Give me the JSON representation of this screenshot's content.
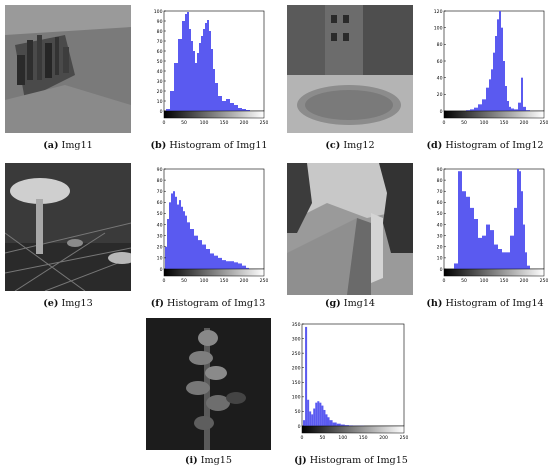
{
  "captions": [
    {
      "letter": "(a)",
      "text": "Img11"
    },
    {
      "letter": "(b)",
      "text": "Histogram of Img11"
    },
    {
      "letter": "(c)",
      "text": "Img12"
    },
    {
      "letter": "(d)",
      "text": "Histogram of Img12"
    },
    {
      "letter": "(e)",
      "text": "Img13"
    },
    {
      "letter": "(f)",
      "text": "Histogram of Img13"
    },
    {
      "letter": "(g)",
      "text": "Img14"
    },
    {
      "letter": "(h)",
      "text": "Histogram of Img14"
    },
    {
      "letter": "(i)",
      "text": "Img15"
    },
    {
      "letter": "(j)",
      "text": "Histogram of Img15"
    }
  ],
  "chart_data": [
    {
      "type": "bar",
      "title": "",
      "xlabel": "",
      "ylabel": "",
      "xlim": [
        0,
        250
      ],
      "ylim": [
        0,
        100
      ],
      "xticks": [
        "0",
        "50",
        "100",
        "150",
        "200",
        "250"
      ],
      "yticks": [
        "0",
        "10",
        "20",
        "30",
        "40",
        "50",
        "60",
        "70",
        "80",
        "90",
        "100"
      ],
      "x": [
        10,
        20,
        30,
        40,
        50,
        55,
        60,
        65,
        70,
        75,
        80,
        85,
        90,
        95,
        100,
        105,
        110,
        115,
        120,
        125,
        130,
        140,
        150,
        160,
        170,
        180,
        190,
        200,
        210
      ],
      "values": [
        2,
        20,
        48,
        72,
        90,
        97,
        99,
        82,
        70,
        60,
        48,
        58,
        68,
        75,
        82,
        88,
        91,
        80,
        62,
        42,
        28,
        15,
        10,
        12,
        8,
        6,
        3,
        2,
        1
      ]
    },
    {
      "type": "bar",
      "title": "",
      "xlabel": "",
      "ylabel": "",
      "xlim": [
        0,
        250
      ],
      "ylim": [
        0,
        120
      ],
      "xticks": [
        "0",
        "50",
        "100",
        "150",
        "200",
        "250"
      ],
      "yticks": [
        "0",
        "20",
        "40",
        "60",
        "80",
        "100",
        "120"
      ],
      "x": [
        60,
        70,
        80,
        90,
        100,
        110,
        115,
        120,
        125,
        130,
        135,
        140,
        145,
        150,
        155,
        160,
        165,
        170,
        180,
        190,
        195,
        200,
        210
      ],
      "values": [
        1,
        2,
        4,
        8,
        14,
        28,
        38,
        50,
        70,
        90,
        110,
        120,
        100,
        60,
        30,
        12,
        5,
        3,
        2,
        10,
        40,
        5,
        1
      ]
    },
    {
      "type": "bar",
      "title": "",
      "xlabel": "",
      "ylabel": "",
      "xlim": [
        0,
        250
      ],
      "ylim": [
        0,
        90
      ],
      "xticks": [
        "0",
        "50",
        "100",
        "150",
        "200",
        "250"
      ],
      "yticks": [
        "0",
        "10",
        "20",
        "30",
        "40",
        "50",
        "60",
        "70",
        "80",
        "90"
      ],
      "x": [
        5,
        10,
        15,
        20,
        25,
        30,
        35,
        40,
        45,
        50,
        55,
        60,
        70,
        80,
        90,
        100,
        110,
        120,
        130,
        140,
        150,
        160,
        170,
        180,
        190,
        200,
        210
      ],
      "values": [
        20,
        45,
        60,
        68,
        70,
        65,
        58,
        62,
        56,
        52,
        48,
        42,
        36,
        30,
        26,
        22,
        18,
        14,
        12,
        10,
        8,
        7,
        7,
        6,
        5,
        3,
        1
      ]
    },
    {
      "type": "bar",
      "title": "",
      "xlabel": "",
      "ylabel": "",
      "xlim": [
        0,
        250
      ],
      "ylim": [
        0,
        90
      ],
      "xticks": [
        "0",
        "50",
        "100",
        "150",
        "200",
        "250"
      ],
      "yticks": [
        "0",
        "10",
        "20",
        "30",
        "40",
        "50",
        "60",
        "70",
        "80",
        "90"
      ],
      "x": [
        30,
        40,
        50,
        60,
        70,
        80,
        90,
        100,
        110,
        120,
        130,
        140,
        150,
        160,
        170,
        180,
        185,
        190,
        195,
        200,
        205,
        210
      ],
      "values": [
        5,
        88,
        70,
        65,
        55,
        45,
        28,
        30,
        40,
        35,
        22,
        18,
        15,
        15,
        30,
        55,
        90,
        88,
        70,
        40,
        15,
        3
      ]
    },
    {
      "type": "bar",
      "title": "",
      "xlabel": "",
      "ylabel": "",
      "xlim": [
        0,
        250
      ],
      "ylim": [
        0,
        350
      ],
      "xticks": [
        "0",
        "50",
        "100",
        "150",
        "200",
        "250"
      ],
      "yticks": [
        "0",
        "50",
        "100",
        "150",
        "200",
        "250",
        "300",
        "350"
      ],
      "x": [
        5,
        10,
        15,
        20,
        25,
        30,
        35,
        40,
        45,
        50,
        55,
        60,
        65,
        70,
        80,
        90,
        100,
        110,
        120,
        130,
        140,
        150
      ],
      "values": [
        20,
        340,
        90,
        50,
        40,
        60,
        80,
        85,
        80,
        70,
        55,
        40,
        30,
        20,
        12,
        8,
        5,
        3,
        2,
        1,
        1,
        1
      ]
    }
  ]
}
